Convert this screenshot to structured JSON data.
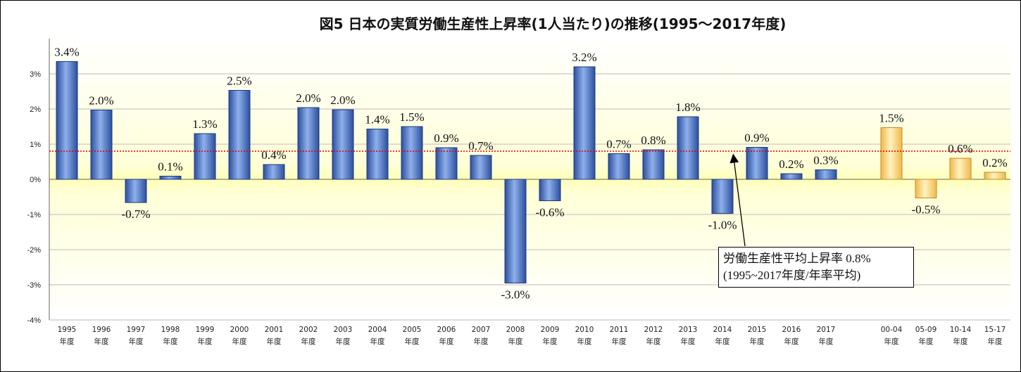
{
  "chart_data": {
    "type": "bar",
    "title": "図5 日本の実質労働生産性上昇率(1人当たり)の推移(1995〜2017年度)",
    "ylim": [
      -4,
      3.5
    ],
    "yticks": [
      "-4%",
      "-3%",
      "-2%",
      "-1%",
      "0%",
      "1%",
      "2%",
      "3%"
    ],
    "ytick_values": [
      -4,
      -3,
      -2,
      -1,
      0,
      1,
      2,
      3
    ],
    "annual": {
      "categories": [
        [
          "1995",
          "年度"
        ],
        [
          "1996",
          "年度"
        ],
        [
          "1997",
          "年度"
        ],
        [
          "1998",
          "年度"
        ],
        [
          "1999",
          "年度"
        ],
        [
          "2000",
          "年度"
        ],
        [
          "2001",
          "年度"
        ],
        [
          "2002",
          "年度"
        ],
        [
          "2003",
          "年度"
        ],
        [
          "2004",
          "年度"
        ],
        [
          "2005",
          "年度"
        ],
        [
          "2006",
          "年度"
        ],
        [
          "2007",
          "年度"
        ],
        [
          "2008",
          "年度"
        ],
        [
          "2009",
          "年度"
        ],
        [
          "2010",
          "年度"
        ],
        [
          "2011",
          "年度"
        ],
        [
          "2012",
          "年度"
        ],
        [
          "2013",
          "年度"
        ],
        [
          "2014",
          "年度"
        ],
        [
          "2015",
          "年度"
        ],
        [
          "2016",
          "年度"
        ],
        [
          "2017",
          "年度"
        ]
      ],
      "values": [
        3.35,
        1.97,
        -0.66,
        0.09,
        1.3,
        2.53,
        0.42,
        2.04,
        1.98,
        1.43,
        1.5,
        0.9,
        0.68,
        -2.95,
        -0.61,
        3.2,
        0.73,
        0.84,
        1.78,
        -0.97,
        0.91,
        0.16,
        0.27
      ],
      "labels": [
        "3.4%",
        "2.0%",
        "-0.7%",
        "0.1%",
        "1.3%",
        "2.5%",
        "0.4%",
        "2.0%",
        "2.0%",
        "1.4%",
        "1.5%",
        "0.9%",
        "0.7%",
        "-3.0%",
        "-0.6%",
        "3.2%",
        "0.7%",
        "0.8%",
        "1.8%",
        "-1.0%",
        "0.9%",
        "0.2%",
        "0.3%"
      ],
      "color": "#4f74c4"
    },
    "period_averages": {
      "categories": [
        [
          "00-04",
          "年度"
        ],
        [
          "05-09",
          "年度"
        ],
        [
          "10-14",
          "年度"
        ],
        [
          "15-17",
          "年度"
        ]
      ],
      "values": [
        1.47,
        -0.53,
        0.6,
        0.2
      ],
      "labels": [
        "1.5%",
        "-0.5%",
        "0.6%",
        "0.2%"
      ],
      "color": "#ffd57a"
    },
    "average_line": {
      "value": 0.8,
      "color": "#e00000",
      "label_line1": "労働生産性平均上昇率 0.8%",
      "label_line2": "(1995~2017年度/年率平均)"
    },
    "background": {
      "positive": "#ffffd0",
      "negative": "#ffffc8"
    }
  }
}
